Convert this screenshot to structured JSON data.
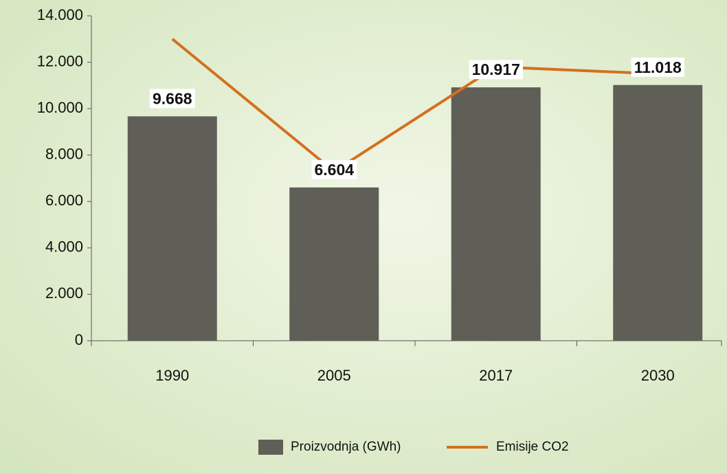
{
  "chart_data": {
    "type": "bar_line",
    "categories": [
      "1990",
      "2005",
      "2017",
      "2030"
    ],
    "series": [
      {
        "name": "Proizvodnja (GWh)",
        "type": "bar",
        "color": "#5f5f58",
        "values": [
          9668,
          6604,
          10917,
          11018
        ],
        "value_labels": [
          "9.668",
          "6.604",
          "10.917",
          "11.018"
        ]
      },
      {
        "name": "Emisije CO2",
        "type": "line",
        "color": "#d4701e",
        "values": [
          13000,
          7300,
          11800,
          11500
        ]
      }
    ],
    "ylim": [
      0,
      14000
    ],
    "yticks": [
      0,
      {
        "value": 2000,
        "label": "2.000"
      },
      {
        "value": 4000,
        "label": "4.000"
      },
      {
        "value": 6000,
        "label": "6.000"
      },
      {
        "value": 8000,
        "label": "8.000"
      },
      {
        "value": 10000,
        "label": "10.000"
      },
      {
        "value": 12000,
        "label": "12.000"
      },
      {
        "value": 14000,
        "label": "14.000"
      }
    ],
    "legend": "bottom"
  }
}
